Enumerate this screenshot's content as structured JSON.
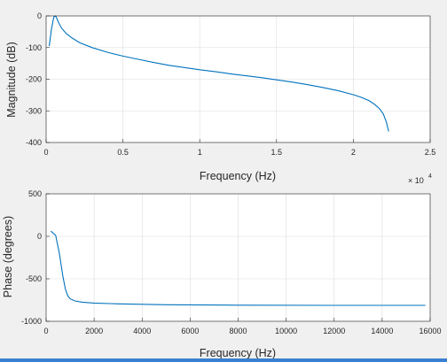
{
  "accent_color": "#0072bd",
  "chart_data": [
    {
      "type": "line",
      "xlabel": "Frequency (Hz)",
      "ylabel": "Magnitude (dB)",
      "xlim": [
        0,
        25000
      ],
      "ylim": [
        -400,
        0
      ],
      "xticks": [
        0,
        5000,
        10000,
        15000,
        20000,
        25000
      ],
      "xtick_labels": [
        "0",
        "0.5",
        "1",
        "1.5",
        "2",
        "2.5"
      ],
      "yticks": [
        -400,
        -300,
        -200,
        -100,
        0
      ],
      "ytick_labels": [
        "-400",
        "-300",
        "-200",
        "-100",
        "0"
      ],
      "x_multiplier": {
        "base": "× 10",
        "exponent": "4"
      },
      "grid": true,
      "series": [
        {
          "color": "#0072bd",
          "x": [
            200,
            350,
            500,
            620,
            700,
            800,
            1000,
            1300,
            1700,
            2200,
            3000,
            4000,
            5000,
            6000,
            7000,
            8000,
            9000,
            10000,
            11000,
            12000,
            13000,
            14000,
            15000,
            16000,
            17000,
            18000,
            19000,
            20000,
            20500,
            21000,
            21400,
            21700,
            21950,
            22150,
            22300
          ],
          "y": [
            -95,
            -40,
            -3,
            0,
            -8,
            -20,
            -38,
            -55,
            -70,
            -85,
            -100,
            -115,
            -127,
            -137,
            -147,
            -156,
            -163,
            -170,
            -176,
            -183,
            -189,
            -195,
            -202,
            -209,
            -217,
            -226,
            -236,
            -249,
            -257,
            -267,
            -280,
            -293,
            -310,
            -335,
            -365
          ]
        }
      ]
    },
    {
      "type": "line",
      "xlabel": "Frequency (Hz)",
      "ylabel": "Phase (degrees)",
      "xlim": [
        0,
        16000
      ],
      "ylim": [
        -1000,
        500
      ],
      "xticks": [
        0,
        2000,
        4000,
        6000,
        8000,
        10000,
        12000,
        14000,
        16000
      ],
      "xtick_labels": [
        "0",
        "2000",
        "4000",
        "6000",
        "8000",
        "10000",
        "12000",
        "14000",
        "16000"
      ],
      "yticks": [
        -1000,
        -500,
        0,
        500
      ],
      "ytick_labels": [
        "-1000",
        "-500",
        "0",
        "500"
      ],
      "grid": true,
      "series": [
        {
          "color": "#0072bd",
          "x": [
            200,
            400,
            550,
            700,
            800,
            900,
            1000,
            1200,
            1500,
            2000,
            3000,
            5000,
            8000,
            12000,
            15800
          ],
          "y": [
            60,
            10,
            -200,
            -470,
            -620,
            -700,
            -735,
            -760,
            -775,
            -785,
            -795,
            -805,
            -810,
            -812,
            -813
          ]
        }
      ]
    }
  ]
}
